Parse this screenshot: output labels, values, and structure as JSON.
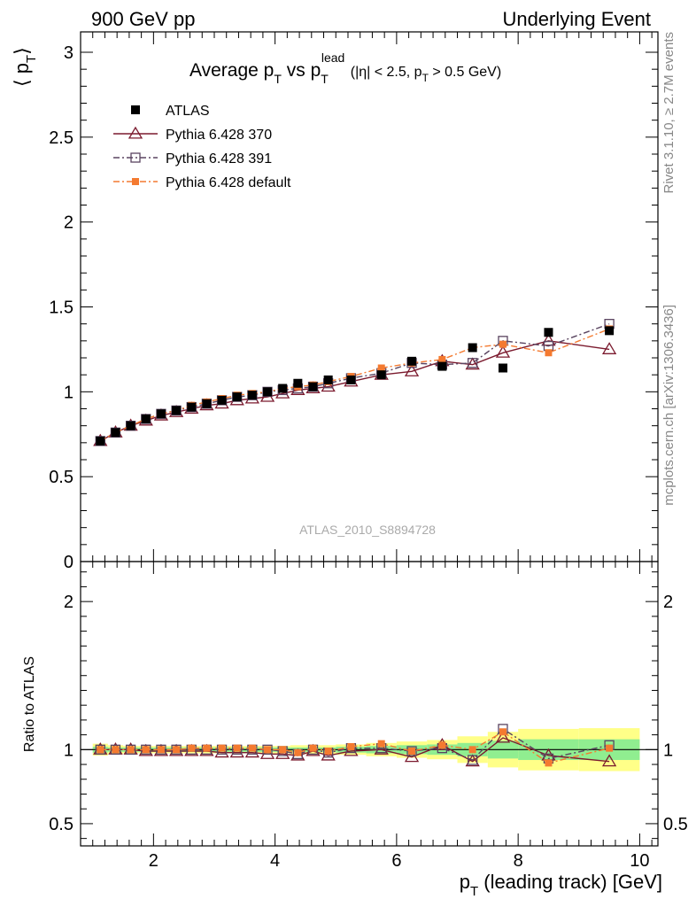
{
  "header": {
    "left": "900 GeV pp",
    "right": "Underlying Event"
  },
  "side_labels": {
    "rivet": "Rivet 3.1.10, ≥ 2.7M events",
    "mcplots": "mcplots.cern.ch [arXiv:1306.3436]"
  },
  "watermark": "ATLAS_2010_S8894728",
  "chart_data": [
    {
      "type": "scatter",
      "panel": "main",
      "title": {
        "prefix": "Average p",
        "prefix_sub": "T",
        "vs": " vs p",
        "lead_sub": "T",
        "lead_sup": "lead",
        "cut_1": " (|η| < 2.5, p",
        "cut_sub": "T",
        "cut_2": " > 0.5 GeV)"
      },
      "ylabel": {
        "text": "⟨ p",
        "sub": "T",
        "close": "⟩"
      },
      "xlim": [
        0.8,
        10.3
      ],
      "ylim": [
        0,
        3.12
      ],
      "yticks": [
        {
          "v": 0,
          "label": "0"
        },
        {
          "v": 0.5,
          "label": "0.5"
        },
        {
          "v": 1,
          "label": "1"
        },
        {
          "v": 1.5,
          "label": "1.5"
        },
        {
          "v": 2,
          "label": "2"
        },
        {
          "v": 2.5,
          "label": "2.5"
        },
        {
          "v": 3,
          "label": "3"
        }
      ],
      "legend_position": "top-left",
      "series": [
        {
          "name": "ATLAS",
          "color": "#000000",
          "marker": "filled-square",
          "line": "none",
          "x": [
            1.125,
            1.375,
            1.625,
            1.875,
            2.125,
            2.375,
            2.625,
            2.875,
            3.125,
            3.375,
            3.625,
            3.875,
            4.125,
            4.375,
            4.625,
            4.875,
            5.25,
            5.75,
            6.25,
            6.75,
            7.25,
            7.75,
            8.5,
            9.5
          ],
          "y": [
            0.71,
            0.76,
            0.8,
            0.84,
            0.87,
            0.89,
            0.91,
            0.93,
            0.95,
            0.97,
            0.98,
            1.0,
            1.02,
            1.05,
            1.03,
            1.07,
            1.07,
            1.1,
            1.18,
            1.15,
            1.26,
            1.14,
            1.35,
            1.36
          ]
        },
        {
          "name": "Pythia 6.428 370",
          "color": "#7b1a2e",
          "marker": "open-triangle",
          "line": "solid",
          "x": [
            1.125,
            1.375,
            1.625,
            1.875,
            2.125,
            2.375,
            2.625,
            2.875,
            3.125,
            3.375,
            3.625,
            3.875,
            4.125,
            4.375,
            4.625,
            4.875,
            5.25,
            5.75,
            6.25,
            6.75,
            7.25,
            7.75,
            8.5,
            9.5
          ],
          "y": [
            0.71,
            0.76,
            0.8,
            0.83,
            0.86,
            0.88,
            0.9,
            0.92,
            0.93,
            0.95,
            0.96,
            0.97,
            0.99,
            1.01,
            1.02,
            1.03,
            1.06,
            1.1,
            1.12,
            1.18,
            1.16,
            1.23,
            1.3,
            1.25
          ]
        },
        {
          "name": "Pythia 6.428 391",
          "color": "#5a4460",
          "marker": "open-square",
          "line": "dashdot",
          "x": [
            1.125,
            1.375,
            1.625,
            1.875,
            2.125,
            2.375,
            2.625,
            2.875,
            3.125,
            3.375,
            3.625,
            3.875,
            4.125,
            4.375,
            4.625,
            4.875,
            5.25,
            5.75,
            6.25,
            6.75,
            7.25,
            7.75,
            8.5,
            9.5
          ],
          "y": [
            0.71,
            0.76,
            0.8,
            0.84,
            0.87,
            0.89,
            0.91,
            0.93,
            0.95,
            0.97,
            0.98,
            1.0,
            1.01,
            1.02,
            1.03,
            1.05,
            1.08,
            1.11,
            1.17,
            1.16,
            1.17,
            1.3,
            1.27,
            1.4
          ]
        },
        {
          "name": "Pythia 6.428 default",
          "color": "#f47a30",
          "marker": "filled-square-small",
          "line": "dashdot",
          "x": [
            1.125,
            1.375,
            1.625,
            1.875,
            2.125,
            2.375,
            2.625,
            2.875,
            3.125,
            3.375,
            3.625,
            3.875,
            4.125,
            4.375,
            4.625,
            4.875,
            5.25,
            5.75,
            6.25,
            6.75,
            7.25,
            7.75,
            8.5,
            9.5
          ],
          "y": [
            0.71,
            0.76,
            0.8,
            0.84,
            0.87,
            0.89,
            0.92,
            0.94,
            0.96,
            0.98,
            0.99,
            1.0,
            1.02,
            1.03,
            1.04,
            1.06,
            1.09,
            1.14,
            1.17,
            1.19,
            1.26,
            1.28,
            1.23,
            1.37
          ]
        }
      ]
    },
    {
      "type": "scatter",
      "panel": "ratio",
      "ylabel": "Ratio to ATLAS",
      "xlabel": {
        "pre": "p",
        "sub": "T",
        "post": " (leading track) [GeV]"
      },
      "xlim": [
        0.8,
        10.3
      ],
      "ylim": [
        0.35,
        2.27
      ],
      "xticks": [
        {
          "v": 2,
          "label": "2"
        },
        {
          "v": 4,
          "label": "4"
        },
        {
          "v": 6,
          "label": "6"
        },
        {
          "v": 8,
          "label": "8"
        },
        {
          "v": 10,
          "label": "10"
        }
      ],
      "yticks": [
        {
          "v": 0.5,
          "label": "0.5"
        },
        {
          "v": 1,
          "label": "1"
        },
        {
          "v": 2,
          "label": "2"
        }
      ],
      "band_colors": {
        "stat": "#90ee90",
        "total": "#ffff88"
      },
      "bands": {
        "edges": [
          1.0,
          1.25,
          1.5,
          1.75,
          2.0,
          2.25,
          2.5,
          2.75,
          3.0,
          3.25,
          3.5,
          3.75,
          4.0,
          4.25,
          4.5,
          4.75,
          5.0,
          5.5,
          6.0,
          6.5,
          7.0,
          7.5,
          8.0,
          9.0,
          10.0
        ],
        "stat_half": [
          0.02,
          0.015,
          0.015,
          0.015,
          0.015,
          0.015,
          0.015,
          0.015,
          0.015,
          0.015,
          0.015,
          0.015,
          0.015,
          0.015,
          0.015,
          0.015,
          0.02,
          0.025,
          0.03,
          0.035,
          0.045,
          0.06,
          0.07,
          0.07
        ],
        "total_half": [
          0.04,
          0.03,
          0.025,
          0.025,
          0.025,
          0.025,
          0.025,
          0.025,
          0.025,
          0.025,
          0.025,
          0.025,
          0.025,
          0.03,
          0.03,
          0.03,
          0.035,
          0.045,
          0.055,
          0.065,
          0.09,
          0.12,
          0.14,
          0.145
        ]
      },
      "series": [
        {
          "name": "Pythia 6.428 370",
          "color": "#7b1a2e",
          "marker": "open-triangle",
          "line": "solid",
          "x": [
            1.125,
            1.375,
            1.625,
            1.875,
            2.125,
            2.375,
            2.625,
            2.875,
            3.125,
            3.375,
            3.625,
            3.875,
            4.125,
            4.375,
            4.625,
            4.875,
            5.25,
            5.75,
            6.25,
            6.75,
            7.25,
            7.75,
            8.5,
            9.5
          ],
          "y": [
            1.0,
            1.0,
            1.0,
            0.99,
            0.99,
            0.99,
            0.99,
            0.99,
            0.98,
            0.98,
            0.98,
            0.97,
            0.97,
            0.96,
            0.99,
            0.96,
            0.99,
            1.0,
            0.95,
            1.03,
            0.92,
            1.08,
            0.96,
            0.92
          ]
        },
        {
          "name": "Pythia 6.428 391",
          "color": "#5a4460",
          "marker": "open-square",
          "line": "dashdot",
          "x": [
            1.125,
            1.375,
            1.625,
            1.875,
            2.125,
            2.375,
            2.625,
            2.875,
            3.125,
            3.375,
            3.625,
            3.875,
            4.125,
            4.375,
            4.625,
            4.875,
            5.25,
            5.75,
            6.25,
            6.75,
            7.25,
            7.75,
            8.5,
            9.5
          ],
          "y": [
            1.0,
            1.0,
            1.0,
            1.0,
            1.0,
            1.0,
            1.0,
            1.0,
            1.0,
            1.0,
            1.0,
            1.0,
            0.99,
            0.97,
            1.0,
            0.98,
            1.01,
            1.01,
            0.99,
            1.01,
            0.93,
            1.14,
            0.94,
            1.03
          ]
        },
        {
          "name": "Pythia 6.428 default",
          "color": "#f47a30",
          "marker": "filled-square-small",
          "line": "dashdot",
          "x": [
            1.125,
            1.375,
            1.625,
            1.875,
            2.125,
            2.375,
            2.625,
            2.875,
            3.125,
            3.375,
            3.625,
            3.875,
            4.125,
            4.375,
            4.625,
            4.875,
            5.25,
            5.75,
            6.25,
            6.75,
            7.25,
            7.75,
            8.5,
            9.5
          ],
          "y": [
            1.0,
            1.0,
            1.0,
            1.0,
            1.0,
            1.0,
            1.01,
            1.01,
            1.01,
            1.01,
            1.01,
            1.0,
            1.0,
            0.98,
            1.01,
            0.99,
            1.02,
            1.04,
            0.99,
            1.03,
            1.0,
            1.12,
            0.91,
            1.01
          ]
        }
      ]
    }
  ]
}
